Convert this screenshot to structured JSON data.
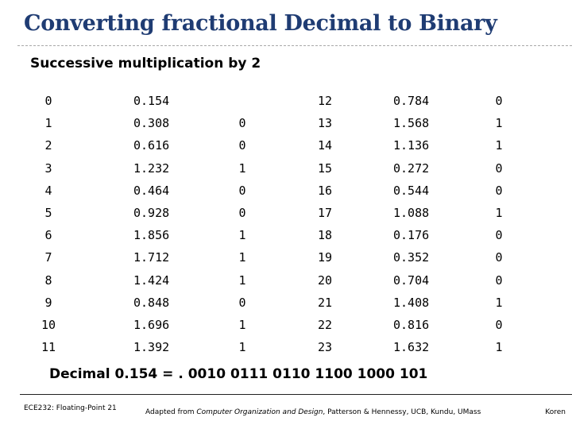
{
  "slide": {
    "title": "Converting fractional Decimal to Binary",
    "subtitle": "Successive multiplication by 2",
    "result": "Decimal 0.154 = . 0010 0111 0110 1100 1000 101"
  },
  "table_left": [
    {
      "idx": "0",
      "val": "0.154",
      "bit": ""
    },
    {
      "idx": "1",
      "val": "0.308",
      "bit": "0"
    },
    {
      "idx": "2",
      "val": "0.616",
      "bit": "0"
    },
    {
      "idx": "3",
      "val": "1.232",
      "bit": "1"
    },
    {
      "idx": "4",
      "val": "0.464",
      "bit": "0"
    },
    {
      "idx": "5",
      "val": "0.928",
      "bit": "0"
    },
    {
      "idx": "6",
      "val": "1.856",
      "bit": "1"
    },
    {
      "idx": "7",
      "val": "1.712",
      "bit": "1"
    },
    {
      "idx": "8",
      "val": "1.424",
      "bit": "1"
    },
    {
      "idx": "9",
      "val": "0.848",
      "bit": "0"
    },
    {
      "idx": "10",
      "val": "1.696",
      "bit": "1"
    },
    {
      "idx": "11",
      "val": "1.392",
      "bit": "1"
    }
  ],
  "table_right": [
    {
      "idx": "12",
      "val": "0.784",
      "bit": "0"
    },
    {
      "idx": "13",
      "val": "1.568",
      "bit": "1"
    },
    {
      "idx": "14",
      "val": "1.136",
      "bit": "1"
    },
    {
      "idx": "15",
      "val": "0.272",
      "bit": "0"
    },
    {
      "idx": "16",
      "val": "0.544",
      "bit": "0"
    },
    {
      "idx": "17",
      "val": "1.088",
      "bit": "1"
    },
    {
      "idx": "18",
      "val": "0.176",
      "bit": "0"
    },
    {
      "idx": "19",
      "val": "0.352",
      "bit": "0"
    },
    {
      "idx": "20",
      "val": "0.704",
      "bit": "0"
    },
    {
      "idx": "21",
      "val": "1.408",
      "bit": "1"
    },
    {
      "idx": "22",
      "val": "0.816",
      "bit": "0"
    },
    {
      "idx": "23",
      "val": "1.632",
      "bit": "1"
    }
  ],
  "footer": {
    "left": "ECE232: Floating-Point 21",
    "center_prefix": "Adapted from ",
    "center_book": "Computer Organization and Design",
    "center_suffix": ", Patterson & Hennessy, UCB, Kundu, UMass",
    "right": "Koren"
  }
}
